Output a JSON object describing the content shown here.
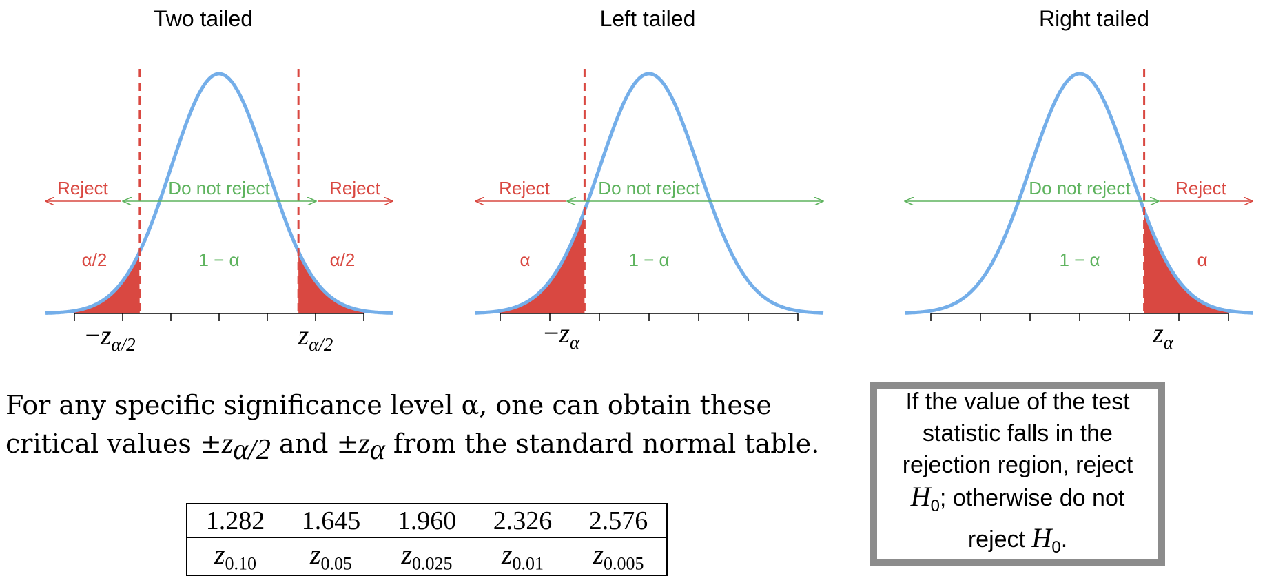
{
  "panels": [
    {
      "key": "two",
      "title": "Two tailed",
      "shade": "both",
      "region_labels": {
        "left": "Reject",
        "middle": "Do not reject",
        "right": "Reject"
      },
      "area_labels": {
        "left": "α/2",
        "middle": "1 − α",
        "right": "α/2"
      },
      "critical_labels": [
        {
          "sign": "−",
          "sym": "z",
          "sub": "α/2"
        },
        {
          "sign": "",
          "sym": "z",
          "sub": "α/2"
        }
      ]
    },
    {
      "key": "left",
      "title": "Left tailed",
      "shade": "left",
      "region_labels": {
        "left": "Reject",
        "middle": "Do not reject",
        "right": ""
      },
      "area_labels": {
        "left": "α",
        "middle": "1 − α",
        "right": ""
      },
      "critical_labels": [
        {
          "sign": "−",
          "sym": "z",
          "sub": "α"
        }
      ]
    },
    {
      "key": "right",
      "title": "Right tailed",
      "shade": "right",
      "region_labels": {
        "left": "",
        "middle": "Do not reject",
        "right": "Reject"
      },
      "area_labels": {
        "left": "",
        "middle": "1 − α",
        "right": "α"
      },
      "critical_labels": [
        {
          "sign": "",
          "sym": "z",
          "sub": "α"
        }
      ]
    }
  ],
  "colors": {
    "curve": "#74aee9",
    "reject": "#d94841",
    "accept": "#5eb35e",
    "axis": "#000000"
  },
  "description": {
    "line1": "For any specific significance level α, one can obtain these",
    "line2_pre": "critical values ±",
    "line2_sym1": "z",
    "line2_sub1": "α/2",
    "line2_mid": " and ±",
    "line2_sym2": "z",
    "line2_sub2": "α",
    "line2_post": " from the standard normal table."
  },
  "z_table": {
    "values": [
      "1.282",
      "1.645",
      "1.960",
      "2.326",
      "2.576"
    ],
    "symbols": [
      {
        "sym": "z",
        "sub": "0.10"
      },
      {
        "sym": "z",
        "sub": "0.05"
      },
      {
        "sym": "z",
        "sub": "0.025"
      },
      {
        "sym": "z",
        "sub": "0.01"
      },
      {
        "sym": "z",
        "sub": "0.005"
      }
    ]
  },
  "rule_box": {
    "pre": "If the value of the test statistic falls in the rejection region, reject ",
    "h1": "H",
    "h1_sub": "0",
    "mid": "; otherwise do not reject ",
    "h2": "H",
    "h2_sub": "0",
    "post": "."
  }
}
